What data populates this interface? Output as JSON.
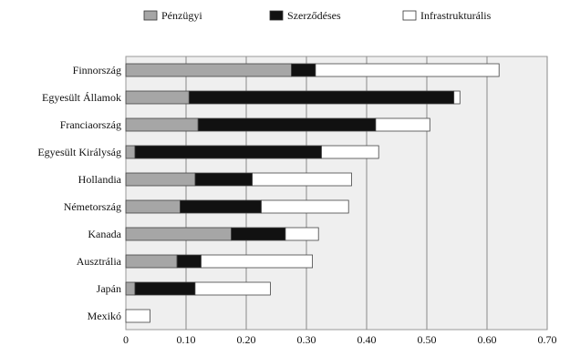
{
  "chart_data": {
    "type": "bar",
    "orientation": "horizontal",
    "stacked": true,
    "title": "",
    "xlabel": "",
    "ylabel": "",
    "xlim": [
      0,
      0.7
    ],
    "xticks": [
      "0",
      "0.10",
      "0.20",
      "0.30",
      "0.40",
      "0.50",
      "0.60",
      "0.70"
    ],
    "xtick_values": [
      0,
      0.1,
      0.2,
      0.3,
      0.4,
      0.5,
      0.6,
      0.7
    ],
    "grid": true,
    "legend_position": "top",
    "categories": [
      "Finnország",
      "Egyesült Államok",
      "Franciaország",
      "Egyesült Királyság",
      "Hollandia",
      "Németország",
      "Kanada",
      "Ausztrália",
      "Japán",
      "Mexikó"
    ],
    "series": [
      {
        "name": "Pénzügyi",
        "color": "#a6a6a6",
        "values": [
          0.275,
          0.105,
          0.12,
          0.015,
          0.115,
          0.09,
          0.175,
          0.085,
          0.015,
          0.0
        ]
      },
      {
        "name": "Szerződéses",
        "color": "#111111",
        "values": [
          0.04,
          0.44,
          0.295,
          0.31,
          0.095,
          0.135,
          0.09,
          0.04,
          0.1,
          0.0
        ]
      },
      {
        "name": "Infrastrukturális",
        "color": "#ffffff",
        "values": [
          0.305,
          0.01,
          0.09,
          0.095,
          0.165,
          0.145,
          0.055,
          0.185,
          0.125,
          0.04
        ]
      }
    ]
  }
}
